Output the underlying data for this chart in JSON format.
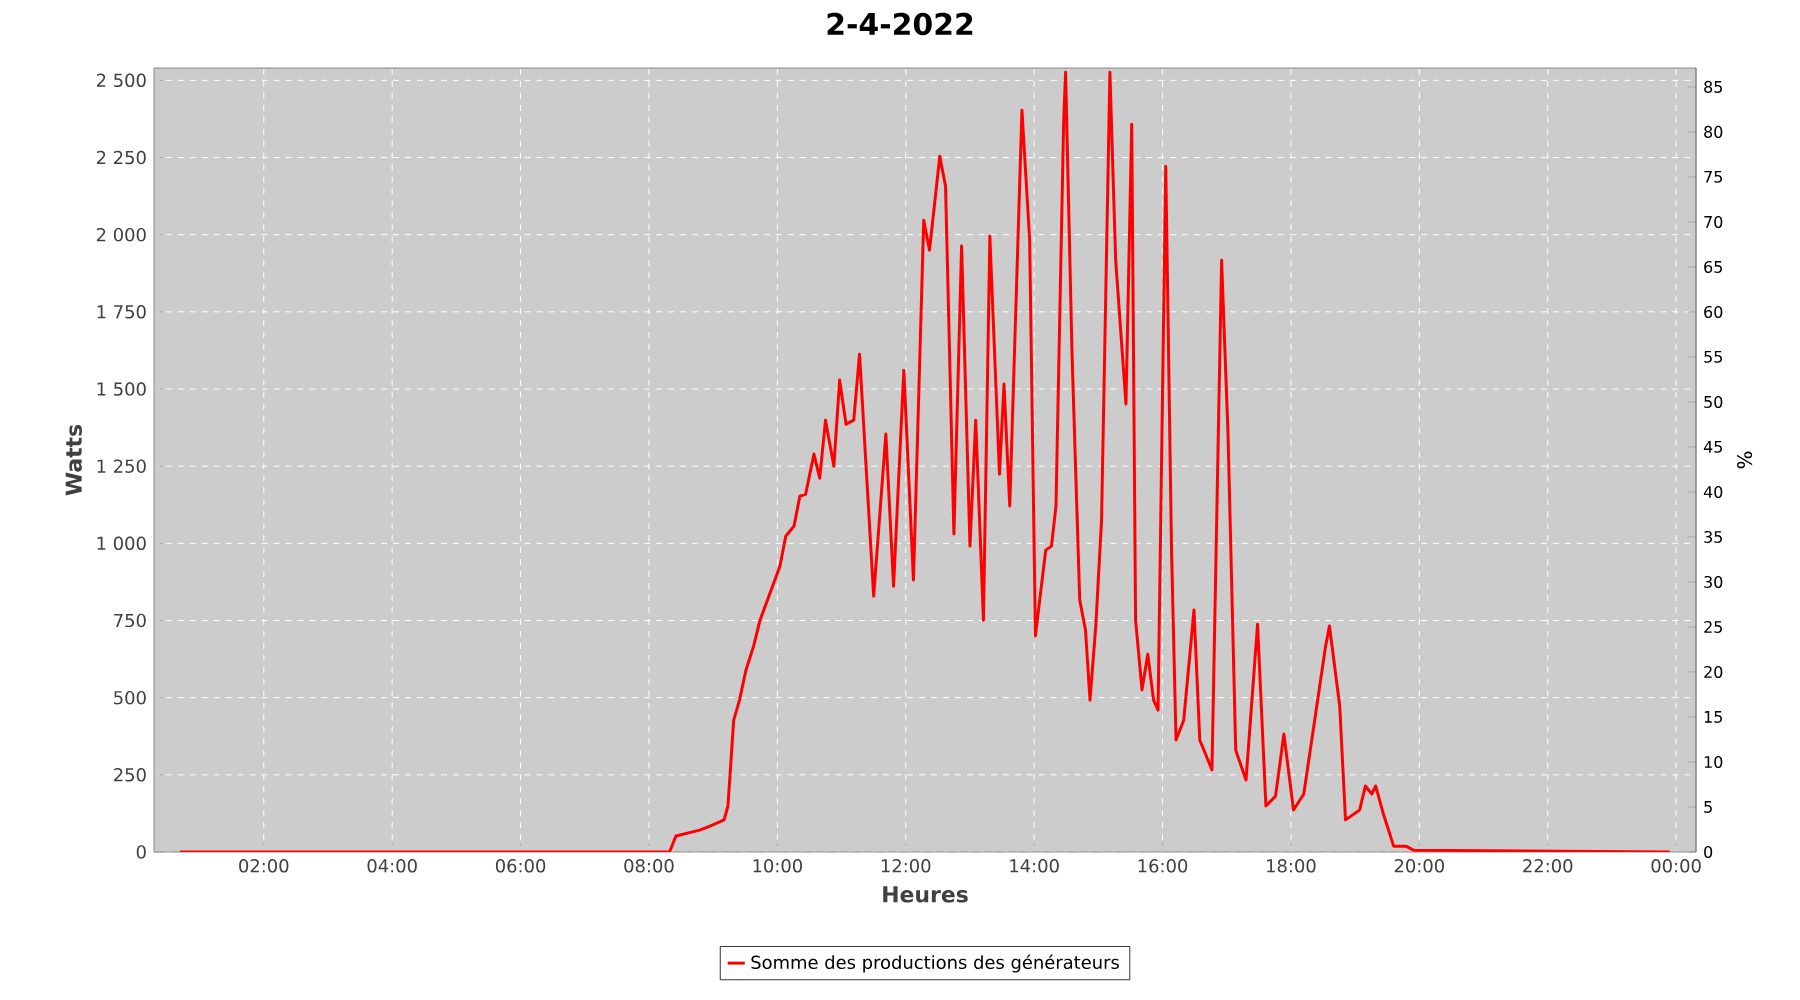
{
  "chart_data": {
    "type": "line",
    "title": "2-4-2022",
    "xlabel": "Heures",
    "ylabel": "Watts",
    "y2label": "%",
    "xlim": [
      0.29,
      24.31
    ],
    "ylim": [
      0,
      2540
    ],
    "y2lim": [
      0,
      87.1
    ],
    "xticks": [
      {
        "value": 2,
        "label": "02:00"
      },
      {
        "value": 4,
        "label": "04:00"
      },
      {
        "value": 6,
        "label": "06:00"
      },
      {
        "value": 8,
        "label": "08:00"
      },
      {
        "value": 10,
        "label": "10:00"
      },
      {
        "value": 12,
        "label": "12:00"
      },
      {
        "value": 14,
        "label": "14:00"
      },
      {
        "value": 16,
        "label": "16:00"
      },
      {
        "value": 18,
        "label": "18:00"
      },
      {
        "value": 20,
        "label": "20:00"
      },
      {
        "value": 22,
        "label": "22:00"
      },
      {
        "value": 24,
        "label": "00:00"
      }
    ],
    "yticks": [
      0,
      250,
      500,
      750,
      {
        "value": 1000,
        "label": "1 000"
      },
      {
        "value": 1250,
        "label": "1 250"
      },
      {
        "value": 1500,
        "label": "1 500"
      },
      {
        "value": 1750,
        "label": "1 750"
      },
      {
        "value": 2000,
        "label": "2 000"
      },
      {
        "value": 2250,
        "label": "2 250"
      },
      {
        "value": 2500,
        "label": "2 500"
      }
    ],
    "y2ticks": [
      0,
      5,
      10,
      15,
      20,
      25,
      30,
      35,
      40,
      45,
      50,
      55,
      60,
      65,
      70,
      75,
      80,
      85
    ],
    "grid": true,
    "legend": "bottom",
    "series": [
      {
        "name": "Somme des productions des  générateurs",
        "color": "#ff0000",
        "x": [
          0.69,
          8.32,
          8.42,
          8.79,
          8.95,
          9.17,
          9.23,
          9.32,
          9.41,
          9.51,
          9.63,
          9.73,
          9.88,
          10.04,
          10.13,
          10.26,
          10.35,
          10.44,
          10.57,
          10.66,
          10.75,
          10.88,
          10.97,
          11.07,
          11.19,
          11.28,
          11.5,
          11.69,
          11.81,
          11.97,
          12.12,
          12.28,
          12.37,
          12.53,
          12.62,
          12.75,
          12.87,
          13.0,
          13.09,
          13.21,
          13.31,
          13.46,
          13.53,
          13.62,
          13.81,
          13.93,
          14.02,
          14.18,
          14.27,
          14.34,
          14.46,
          14.49,
          14.59,
          14.71,
          14.8,
          14.87,
          14.96,
          15.05,
          15.18,
          15.27,
          15.43,
          15.52,
          15.58,
          15.68,
          15.77,
          15.86,
          15.93,
          16.05,
          16.14,
          16.21,
          16.33,
          16.49,
          16.58,
          16.77,
          16.92,
          17.02,
          17.14,
          17.3,
          17.48,
          17.61,
          17.76,
          17.89,
          18.04,
          18.2,
          18.54,
          18.6,
          18.76,
          18.85,
          19.07,
          19.16,
          19.26,
          19.32,
          19.44,
          19.6,
          19.79,
          19.91,
          23.9
        ],
        "values": [
          0,
          0,
          52,
          71,
          84,
          104,
          149,
          427,
          492,
          589,
          667,
          751,
          836,
          926,
          1023,
          1056,
          1153,
          1159,
          1289,
          1211,
          1399,
          1250,
          1529,
          1386,
          1399,
          1613,
          829,
          1354,
          861,
          1561,
          881,
          2047,
          1950,
          2254,
          2157,
          1030,
          1963,
          991,
          1399,
          751,
          1995,
          1224,
          1516,
          1121,
          2403,
          1982,
          700,
          978,
          991,
          1121,
          2371,
          2526,
          1613,
          816,
          719,
          492,
          732,
          1075,
          2526,
          1917,
          1451,
          2358,
          751,
          525,
          641,
          492,
          460,
          2222,
          978,
          363,
          427,
          784,
          363,
          266,
          1917,
          1354,
          330,
          233,
          738,
          149,
          181,
          382,
          136,
          188,
          667,
          732,
          473,
          104,
          136,
          214,
          188,
          214,
          123,
          19,
          19,
          6,
          0
        ]
      }
    ]
  }
}
